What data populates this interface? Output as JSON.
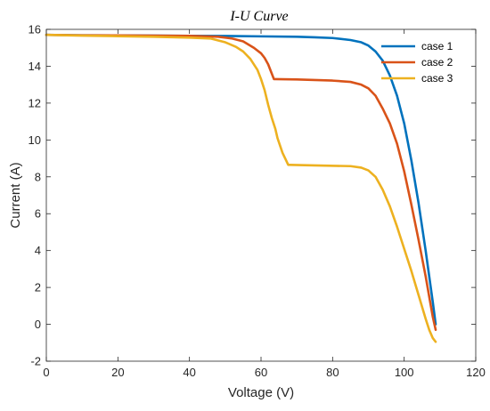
{
  "chart_data": {
    "type": "line",
    "title": "I-U Curve",
    "xlabel": "Voltage (V)",
    "ylabel": "Current (A)",
    "xlim": [
      0,
      120
    ],
    "ylim": [
      -2,
      16
    ],
    "xticks": [
      0,
      20,
      40,
      60,
      80,
      100,
      120
    ],
    "yticks": [
      -2,
      0,
      2,
      4,
      6,
      8,
      10,
      12,
      14,
      16
    ],
    "grid": false,
    "legend_position": "top-right",
    "series": [
      {
        "name": "case 1",
        "color": "#0072BD",
        "x": [
          0,
          10,
          20,
          30,
          40,
          50,
          60,
          70,
          75,
          80,
          85,
          88,
          90,
          92,
          94,
          96,
          98,
          100,
          102,
          104,
          106,
          107,
          108,
          108.8
        ],
        "y": [
          15.7,
          15.68,
          15.67,
          15.66,
          15.65,
          15.64,
          15.62,
          15.6,
          15.57,
          15.53,
          15.42,
          15.3,
          15.12,
          14.8,
          14.3,
          13.5,
          12.4,
          10.9,
          8.9,
          6.6,
          4.0,
          2.6,
          1.2,
          0.0
        ]
      },
      {
        "name": "case 2",
        "color": "#D95319",
        "x": [
          0,
          10,
          20,
          30,
          40,
          48,
          52,
          55,
          58,
          60,
          61,
          62,
          63,
          63.6,
          64,
          70,
          80,
          85,
          88,
          90,
          92,
          94,
          96,
          98,
          100,
          102,
          104,
          106,
          107,
          108,
          108.8
        ],
        "y": [
          15.7,
          15.68,
          15.67,
          15.66,
          15.65,
          15.6,
          15.5,
          15.35,
          15.0,
          14.7,
          14.45,
          14.1,
          13.6,
          13.3,
          13.3,
          13.28,
          13.22,
          13.15,
          13.0,
          12.8,
          12.4,
          11.7,
          10.9,
          9.8,
          8.3,
          6.5,
          4.6,
          2.6,
          1.5,
          0.4,
          -0.3
        ]
      },
      {
        "name": "case 3",
        "color": "#EDB120",
        "x": [
          0,
          10,
          20,
          30,
          40,
          46,
          50,
          53,
          55,
          57,
          59,
          60,
          61,
          62,
          63,
          64,
          64.6,
          66,
          67.6,
          68,
          75,
          85,
          88,
          90,
          92,
          94,
          96,
          98,
          100,
          102,
          104,
          106,
          107,
          108,
          108.8
        ],
        "y": [
          15.7,
          15.66,
          15.63,
          15.6,
          15.55,
          15.5,
          15.3,
          15.05,
          14.8,
          14.4,
          13.8,
          13.3,
          12.7,
          11.9,
          11.2,
          10.6,
          10.1,
          9.3,
          8.65,
          8.65,
          8.62,
          8.58,
          8.5,
          8.35,
          8.0,
          7.3,
          6.4,
          5.3,
          4.1,
          2.9,
          1.6,
          0.3,
          -0.3,
          -0.75,
          -0.95
        ]
      }
    ]
  }
}
